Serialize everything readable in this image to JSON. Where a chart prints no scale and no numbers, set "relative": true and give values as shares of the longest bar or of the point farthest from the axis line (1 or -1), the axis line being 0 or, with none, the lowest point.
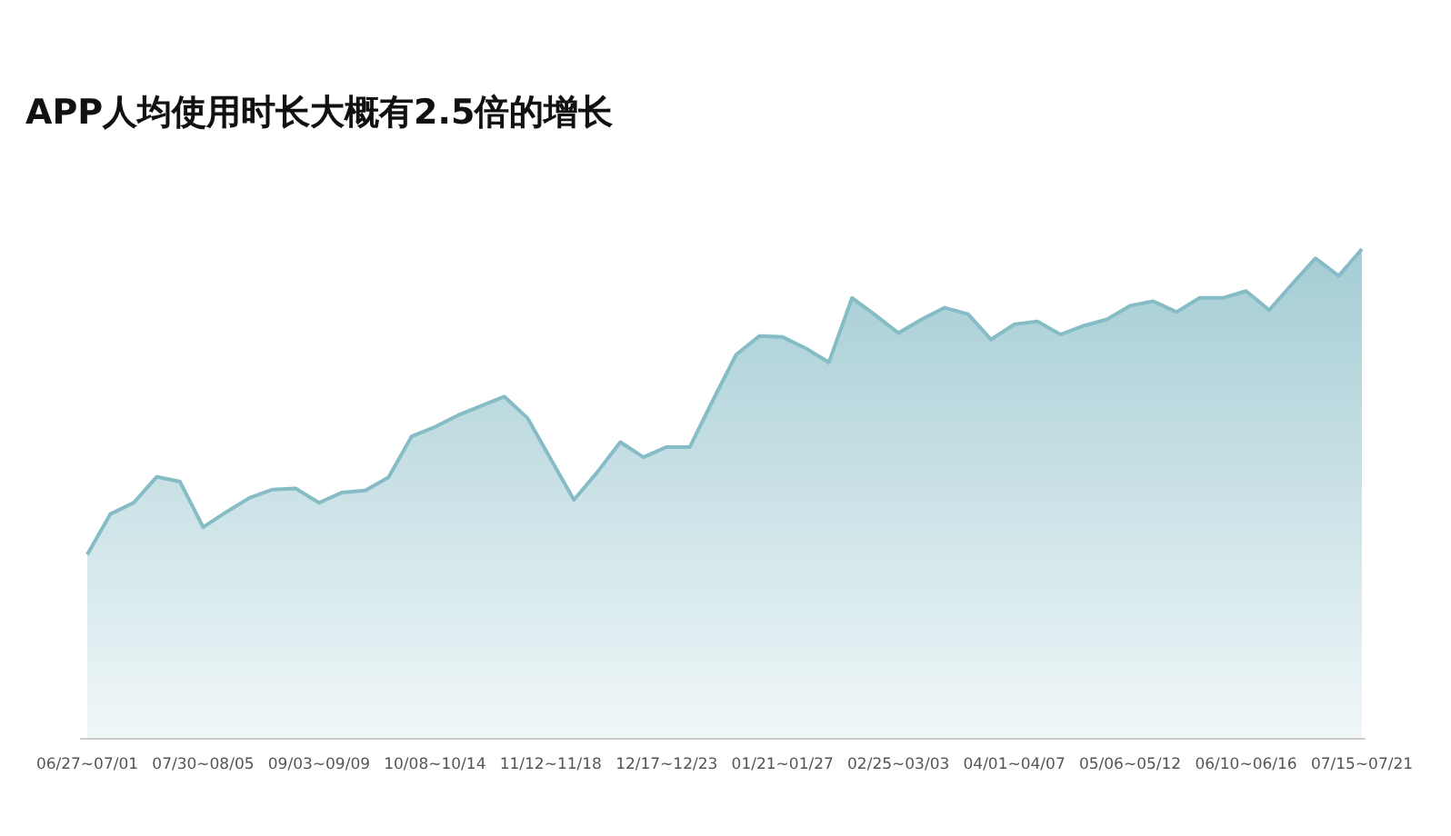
{
  "chart_data": {
    "type": "area",
    "title": "APP人均使用时长大概有2.5倍的增长",
    "relative": true,
    "categories": [
      "06/27~07/01",
      null,
      null,
      null,
      null,
      "07/30~08/05",
      null,
      null,
      null,
      null,
      "09/03~09/09",
      null,
      null,
      null,
      null,
      "10/08~10/14",
      null,
      null,
      null,
      null,
      "11/12~11/18",
      null,
      null,
      null,
      null,
      "12/17~12/23",
      null,
      null,
      null,
      null,
      "01/21~01/27",
      null,
      null,
      null,
      null,
      "02/25~03/03",
      null,
      null,
      null,
      null,
      "04/01~04/07",
      null,
      null,
      null,
      null,
      "05/06~05/12",
      null,
      null,
      null,
      null,
      "06/10~06/16",
      null,
      null,
      null,
      null,
      "07/15~07/21"
    ],
    "series": [
      {
        "color": "#86bcc6",
        "values": [
          0.375,
          0.458,
          0.481,
          0.534,
          0.524,
          0.431,
          0.462,
          0.491,
          0.508,
          0.51,
          0.481,
          0.502,
          0.506,
          0.533,
          0.617,
          0.636,
          0.66,
          0.679,
          0.698,
          0.654,
          0.57,
          0.487,
          0.543,
          0.605,
          0.574,
          0.595,
          0.595,
          0.691,
          0.784,
          0.822,
          0.82,
          0.797,
          0.768,
          0.9,
          0.865,
          0.828,
          0.856,
          0.88,
          0.867,
          0.815,
          0.846,
          0.852,
          0.825,
          0.843,
          0.856,
          0.884,
          0.893,
          0.871,
          0.9,
          0.9,
          0.914,
          0.875,
          0.929,
          0.981,
          0.945,
          1
        ]
      }
    ]
  }
}
